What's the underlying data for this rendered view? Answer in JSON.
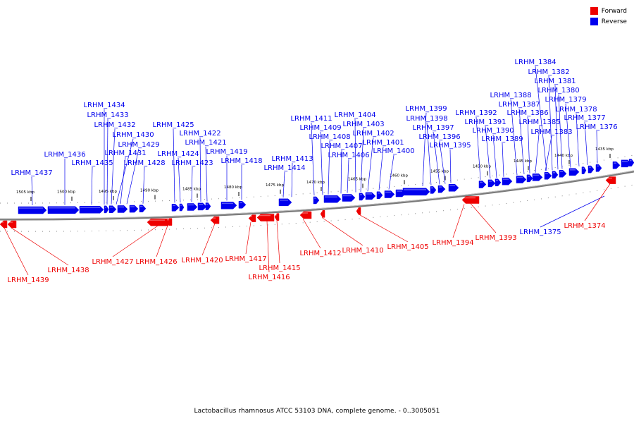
{
  "legend": {
    "forward_label": "Forward",
    "reverse_label": "Reverse",
    "forward_color": "#ee0000",
    "reverse_color": "#0000ee"
  },
  "caption": "Lactobacillus rhamnosus ATCC 53103 DNA, complete genome. - 0..3005051",
  "ticks": [
    "1505 kbp",
    "1500 kbp",
    "1495 kbp",
    "1490 kbp",
    "1485 kbp",
    "1480 kbp",
    "1475 kbp",
    "1470 kbp",
    "1465 kbp",
    "1460 kbp",
    "1455 kbp",
    "1450 kbp",
    "1445 kbp",
    "1440 kbp",
    "1435 kbp"
  ],
  "reverse_labels": [
    "LRHM_1437",
    "LRHM_1436",
    "LRHM_1435",
    "LRHM_1434",
    "LRHM_1433",
    "LRHM_1432",
    "LRHM_1431",
    "LRHM_1430",
    "LRHM_1429",
    "LRHM_1428",
    "LRHM_1425",
    "LRHM_1424",
    "LRHM_1423",
    "LRHM_1422",
    "LRHM_1421",
    "LRHM_1419",
    "LRHM_1418",
    "LRHM_1414",
    "LRHM_1413",
    "LRHM_1411",
    "LRHM_1409",
    "LRHM_1408",
    "LRHM_1407",
    "LRHM_1406",
    "LRHM_1404",
    "LRHM_1403",
    "LRHM_1402",
    "LRHM_1401",
    "LRHM_1400",
    "LRHM_1399",
    "LRHM_1398",
    "LRHM_1397",
    "LRHM_1396",
    "LRHM_1395",
    "LRHM_1392",
    "LRHM_1391",
    "LRHM_1390",
    "LRHM_1389",
    "LRHM_1388",
    "LRHM_1387",
    "LRHM_1386",
    "LRHM_1385",
    "LRHM_1384",
    "LRHM_1383",
    "LRHM_1382",
    "LRHM_1381",
    "LRHM_1380",
    "LRHM_1379",
    "LRHM_1378",
    "LRHM_1377",
    "LRHM_1376",
    "LRHM_1375"
  ],
  "forward_labels": [
    "LRHM_1439",
    "LRHM_1438",
    "LRHM_1427",
    "LRHM_1426",
    "LRHM_1420",
    "LRHM_1417",
    "LRHM_1416",
    "LRHM_1415",
    "LRHM_1412",
    "LRHM_1410",
    "LRHM_1405",
    "LRHM_1394",
    "LRHM_1393",
    "LRHM_1374"
  ]
}
